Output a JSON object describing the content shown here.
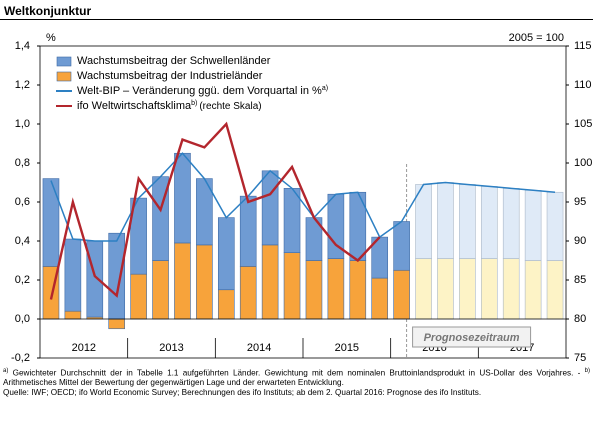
{
  "header": {
    "title": "Weltkonjunktur"
  },
  "chart_data": {
    "type": "bar",
    "y_unit_label": "%",
    "y2_unit_label": "2005 = 100",
    "categories": [
      null,
      null,
      null,
      null,
      null,
      null,
      null,
      null,
      null,
      null,
      null,
      null,
      null,
      null,
      null,
      null,
      null,
      null,
      null,
      null,
      null,
      null,
      null,
      null
    ],
    "x_groups": [
      "2012",
      "2013",
      "2014",
      "2015",
      "2016",
      "2017"
    ],
    "forecast_start": 17,
    "forecast_label": "Prognosezeitraum",
    "ylim": [
      -0.2,
      1.4
    ],
    "yticks": [
      {
        "value": -0.2,
        "label": "-0,2"
      },
      {
        "value": 0,
        "label": "0,0"
      },
      {
        "value": 0.2,
        "label": "0,2"
      },
      {
        "value": 0.4,
        "label": "0,4"
      },
      {
        "value": 0.6,
        "label": "0,6"
      },
      {
        "value": 0.8,
        "label": "0,8"
      },
      {
        "value": 1.0,
        "label": "1,0"
      },
      {
        "value": 1.2,
        "label": "1,2"
      },
      {
        "value": 1.4,
        "label": "1,4"
      }
    ],
    "y2lim": [
      75,
      115
    ],
    "y2ticks": [
      75,
      80,
      85,
      90,
      95,
      100,
      105,
      110,
      115
    ],
    "series": [
      {
        "name": "Wachstumsbeitrag der Schwellenländer",
        "kind": "bar",
        "color": "#6f9bd3",
        "forecast_color": "#dfeaf7",
        "values": [
          0.45,
          0.37,
          0.39,
          0.44,
          0.39,
          0.43,
          0.46,
          0.34,
          0.37,
          0.36,
          0.38,
          0.33,
          0.22,
          0.33,
          0.35,
          0.21,
          0.25,
          0.38,
          0.39,
          0.38,
          0.37,
          0.36,
          0.36,
          0.35
        ]
      },
      {
        "name": "Wachstumsbeitrag der Industrieländer",
        "kind": "bar",
        "color": "#f7a33b",
        "forecast_color": "#fdf3c6",
        "values": [
          0.27,
          0.04,
          0.01,
          -0.05,
          0.23,
          0.3,
          0.39,
          0.38,
          0.15,
          0.27,
          0.38,
          0.34,
          0.3,
          0.31,
          0.3,
          0.21,
          0.25,
          0.31,
          0.31,
          0.31,
          0.31,
          0.31,
          0.3,
          0.3
        ]
      },
      {
        "name": "Welt-BIP – Veränderung ggü. dem Vorquartal in %",
        "name_note": "a)",
        "kind": "line",
        "color": "#2d80c3",
        "values": [
          0.71,
          0.41,
          0.4,
          0.4,
          0.62,
          0.73,
          0.85,
          0.72,
          0.52,
          0.63,
          0.76,
          0.67,
          0.52,
          0.64,
          0.65,
          0.42,
          0.5,
          0.69,
          0.7,
          0.69,
          0.68,
          0.67,
          0.66,
          0.65
        ]
      },
      {
        "name": "ifo Weltwirtschaftsklima",
        "name_note": "b)",
        "name_suffix": "(rechte Skala)",
        "kind": "line",
        "axis": "y2",
        "color": "#b3262d",
        "values": [
          82.5,
          95,
          85.5,
          83,
          98,
          94,
          103,
          102,
          105,
          95,
          96,
          99.5,
          93,
          89.5,
          87.5,
          90.5,
          null,
          null,
          null,
          null,
          null,
          null,
          null,
          null
        ]
      }
    ]
  },
  "notes": [
    {
      "mark": "a)",
      "text": "Gewichteter Durchschnitt der in Tabelle 1.1 aufgeführten Länder. Gewichtung mit dem nominalen Bruttoinlandsprodukt in US-Dollar des Vorjahres. -"
    },
    {
      "mark": "b)",
      "text": "Arithmetisches Mittel der Bewertung der gegenwärtigen Lage und der erwarteten Entwicklung."
    }
  ],
  "source": "Quelle: IWF; OECD; ifo World Economic Survey; Berechnungen des ifo Instituts; ab dem 2. Quartal 2016: Prognose des ifo Instituts."
}
